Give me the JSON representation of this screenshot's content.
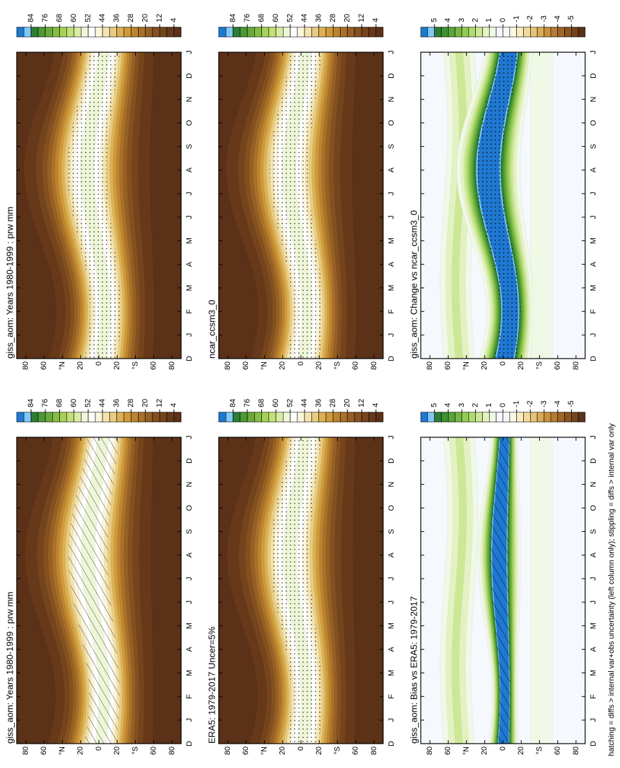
{
  "chart_data": [
    {
      "type": "contour",
      "title": "giss_aom: Years 1980-1999 : prw mm",
      "categories": [
        "D",
        "J",
        "F",
        "M",
        "A",
        "M",
        "J",
        "J",
        "A",
        "S",
        "O",
        "N",
        "D",
        "J"
      ],
      "ylim": [
        -90,
        90
      ],
      "yticks": [
        80,
        60,
        {
          "value": 40,
          "label": "°N"
        },
        20,
        0,
        {
          "value": -20,
          "label": "20"
        },
        {
          "value": -40,
          "label": "°S"
        },
        {
          "value": -60,
          "label": "60"
        },
        {
          "value": -80,
          "label": "80"
        }
      ],
      "colorbar": {
        "clim": [
          0,
          92
        ],
        "ticks": [
          84,
          76,
          68,
          60,
          52,
          44,
          36,
          28,
          20,
          12,
          4
        ],
        "colors": [
          "#1f78d1",
          "#7fc8f8",
          "#2e7d32",
          "#4a9a36",
          "#6aaa3a",
          "#86bd45",
          "#a6d257",
          "#c2e07a",
          "#d9eca6",
          "#eef6d8",
          "#ffffff",
          "#fbf5dc",
          "#f3e3b0",
          "#e8cc80",
          "#dcb155",
          "#cf9a3a",
          "#bd8430",
          "#a97029",
          "#965f24",
          "#845020",
          "#74441c",
          "#67391a",
          "#5b3117"
        ]
      }
    },
    {
      "type": "contour",
      "title": "ERA5: 1979-2017 Uncer=5%",
      "categories": [
        "D",
        "J",
        "F",
        "M",
        "A",
        "M",
        "J",
        "J",
        "A",
        "S",
        "O",
        "N",
        "D",
        "J"
      ],
      "ylim": [
        -90,
        90
      ],
      "yticks": [
        80,
        60,
        {
          "value": 40,
          "label": "°N"
        },
        20,
        0,
        {
          "value": -20,
          "label": "20"
        },
        {
          "value": -40,
          "label": "°S"
        },
        {
          "value": -60,
          "label": "60"
        },
        {
          "value": -80,
          "label": "80"
        }
      ],
      "colorbar": {
        "clim": [
          0,
          92
        ],
        "ticks": [
          84,
          76,
          68,
          60,
          52,
          44,
          36,
          28,
          20,
          12,
          4
        ],
        "colors": [
          "#1f78d1",
          "#7fc8f8",
          "#2e7d32",
          "#4a9a36",
          "#6aaa3a",
          "#86bd45",
          "#a6d257",
          "#c2e07a",
          "#d9eca6",
          "#eef6d8",
          "#ffffff",
          "#fbf5dc",
          "#f3e3b0",
          "#e8cc80",
          "#dcb155",
          "#cf9a3a",
          "#bd8430",
          "#a97029",
          "#965f24",
          "#845020",
          "#74441c",
          "#67391a",
          "#5b3117"
        ]
      }
    },
    {
      "type": "contour",
      "title": "giss_aom: Bias vs ERA5: 1979-2017",
      "categories": [
        "D",
        "J",
        "F",
        "M",
        "A",
        "M",
        "J",
        "J",
        "A",
        "S",
        "O",
        "N",
        "D",
        "J"
      ],
      "ylim": [
        -90,
        90
      ],
      "yticks": [
        80,
        60,
        {
          "value": 40,
          "label": "°N"
        },
        20,
        0,
        {
          "value": -20,
          "label": "20"
        },
        {
          "value": -40,
          "label": "°S"
        },
        {
          "value": -60,
          "label": "60"
        },
        {
          "value": -80,
          "label": "80"
        }
      ],
      "colorbar": {
        "clim": [
          -6,
          6
        ],
        "ticks": [
          5,
          4,
          3,
          2,
          1,
          0,
          -1,
          -2,
          -3,
          -4,
          -5
        ],
        "colors": [
          "#1f78d1",
          "#7fc8f8",
          "#2e7d32",
          "#3f9134",
          "#5aa53b",
          "#76b846",
          "#94cb56",
          "#b1db72",
          "#cde895",
          "#e3f2c0",
          "#f0f8e6",
          "#f5f8fc",
          "#f5f8fc",
          "#fdf8e4",
          "#f8ecc0",
          "#f0d99a",
          "#e6c378",
          "#d9aa58",
          "#c99140",
          "#b57a33",
          "#9e6629",
          "#875422",
          "#71451d",
          "#5b3117"
        ]
      }
    },
    {
      "type": "contour",
      "title": "giss_aom: Years 1980-1999 : prw mm",
      "categories": [
        "D",
        "J",
        "F",
        "M",
        "A",
        "M",
        "J",
        "J",
        "A",
        "S",
        "O",
        "N",
        "D",
        "J"
      ],
      "ylim": [
        -90,
        90
      ],
      "yticks": [
        80,
        60,
        {
          "value": 40,
          "label": "°N"
        },
        20,
        0,
        {
          "value": -20,
          "label": "20"
        },
        {
          "value": -40,
          "label": "°S"
        },
        {
          "value": -60,
          "label": "60"
        },
        {
          "value": -80,
          "label": "80"
        }
      ],
      "colorbar": {
        "clim": [
          0,
          92
        ],
        "ticks": [
          84,
          76,
          68,
          60,
          52,
          44,
          36,
          28,
          20,
          12,
          4
        ],
        "colors": [
          "#1f78d1",
          "#7fc8f8",
          "#2e7d32",
          "#4a9a36",
          "#6aaa3a",
          "#86bd45",
          "#a6d257",
          "#c2e07a",
          "#d9eca6",
          "#eef6d8",
          "#ffffff",
          "#fbf5dc",
          "#f3e3b0",
          "#e8cc80",
          "#dcb155",
          "#cf9a3a",
          "#bd8430",
          "#a97029",
          "#965f24",
          "#845020",
          "#74441c",
          "#67391a",
          "#5b3117"
        ]
      }
    },
    {
      "type": "contour",
      "title": "ncar_ccsm3_0",
      "categories": [
        "D",
        "J",
        "F",
        "M",
        "A",
        "M",
        "J",
        "J",
        "A",
        "S",
        "O",
        "N",
        "D",
        "J"
      ],
      "ylim": [
        -90,
        90
      ],
      "yticks": [
        80,
        60,
        {
          "value": 40,
          "label": "°N"
        },
        20,
        0,
        {
          "value": -20,
          "label": "20"
        },
        {
          "value": -40,
          "label": "°S"
        },
        {
          "value": -60,
          "label": "60"
        },
        {
          "value": -80,
          "label": "80"
        }
      ],
      "colorbar": {
        "clim": [
          0,
          92
        ],
        "ticks": [
          84,
          76,
          68,
          60,
          52,
          44,
          36,
          28,
          20,
          12,
          4
        ],
        "colors": [
          "#1f78d1",
          "#7fc8f8",
          "#2e7d32",
          "#4a9a36",
          "#6aaa3a",
          "#86bd45",
          "#a6d257",
          "#c2e07a",
          "#d9eca6",
          "#eef6d8",
          "#ffffff",
          "#fbf5dc",
          "#f3e3b0",
          "#e8cc80",
          "#dcb155",
          "#cf9a3a",
          "#bd8430",
          "#a97029",
          "#965f24",
          "#845020",
          "#74441c",
          "#67391a",
          "#5b3117"
        ]
      }
    },
    {
      "type": "contour",
      "title": "giss_aom: Change vs ncar_ccsm3_0",
      "categories": [
        "D",
        "J",
        "F",
        "M",
        "A",
        "M",
        "J",
        "J",
        "A",
        "S",
        "O",
        "N",
        "D",
        "J"
      ],
      "ylim": [
        -90,
        90
      ],
      "yticks": [
        80,
        60,
        {
          "value": 40,
          "label": "°N"
        },
        20,
        0,
        {
          "value": -20,
          "label": "20"
        },
        {
          "value": -40,
          "label": "°S"
        },
        {
          "value": -60,
          "label": "60"
        },
        {
          "value": -80,
          "label": "80"
        }
      ],
      "colorbar": {
        "clim": [
          -6,
          6
        ],
        "ticks": [
          5,
          4,
          3,
          2,
          1,
          0,
          -1,
          -2,
          -3,
          -4,
          -5
        ],
        "colors": [
          "#1f78d1",
          "#7fc8f8",
          "#2e7d32",
          "#3f9134",
          "#5aa53b",
          "#76b846",
          "#94cb56",
          "#b1db72",
          "#cde895",
          "#e3f2c0",
          "#f0f8e6",
          "#f5f8fc",
          "#f5f8fc",
          "#fdf8e4",
          "#f8ecc0",
          "#f0d99a",
          "#e6c378",
          "#d9aa58",
          "#c99140",
          "#b57a33",
          "#9e6629",
          "#875422",
          "#71451d",
          "#5b3117"
        ]
      }
    }
  ],
  "footnote": "hatching = diffs > internal var+obs uncertainty (left column only); stippling = diffs > internal var only"
}
